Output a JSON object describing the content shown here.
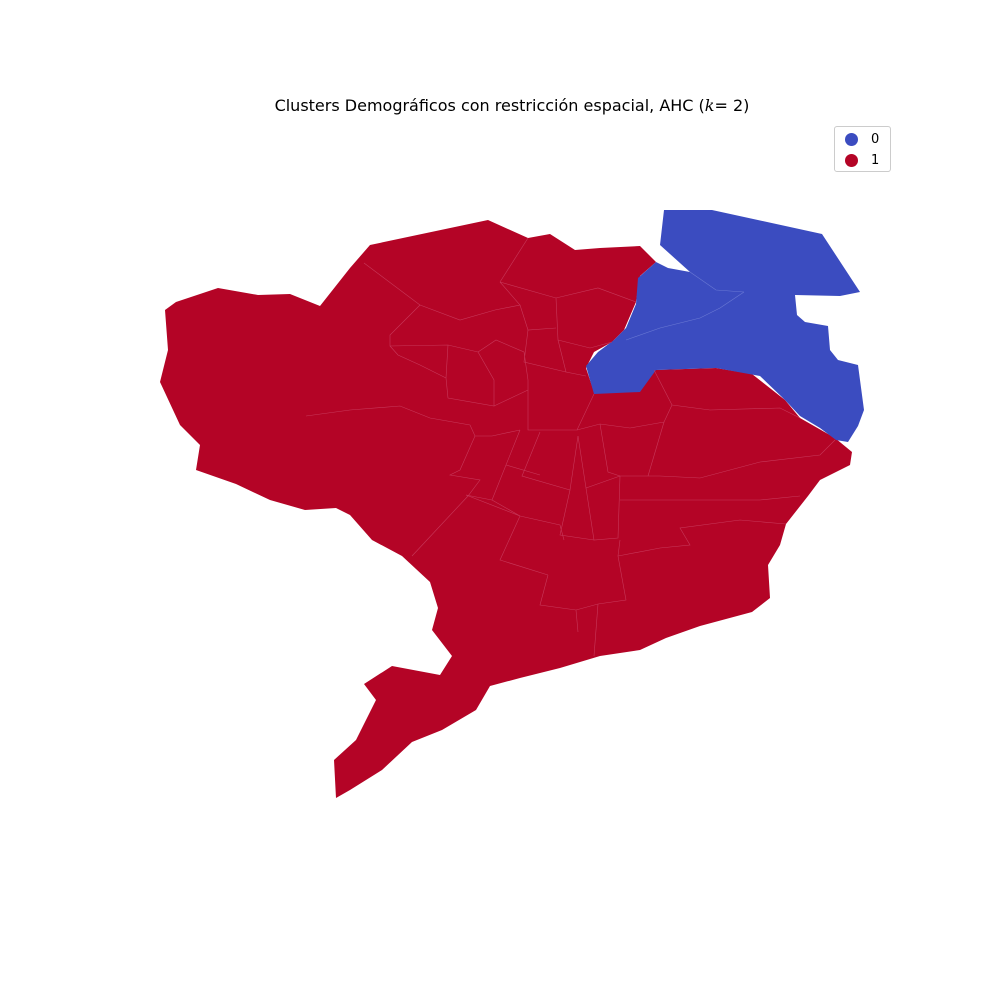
{
  "title": "Clusters Demográficos con restricción espacial, AHC ($k=2$)",
  "title_parts": {
    "prefix": "Clusters Demográficos con restricción espacial, AHC (",
    "var": "k",
    "suffix": "= 2)"
  },
  "colors": {
    "cluster_0": "#3b4cc0",
    "cluster_1": "#b40426",
    "boundary": "#c8385a"
  },
  "legend": [
    {
      "label": "0",
      "color": "#3b4cc0"
    },
    {
      "label": "1",
      "color": "#b40426"
    }
  ]
}
